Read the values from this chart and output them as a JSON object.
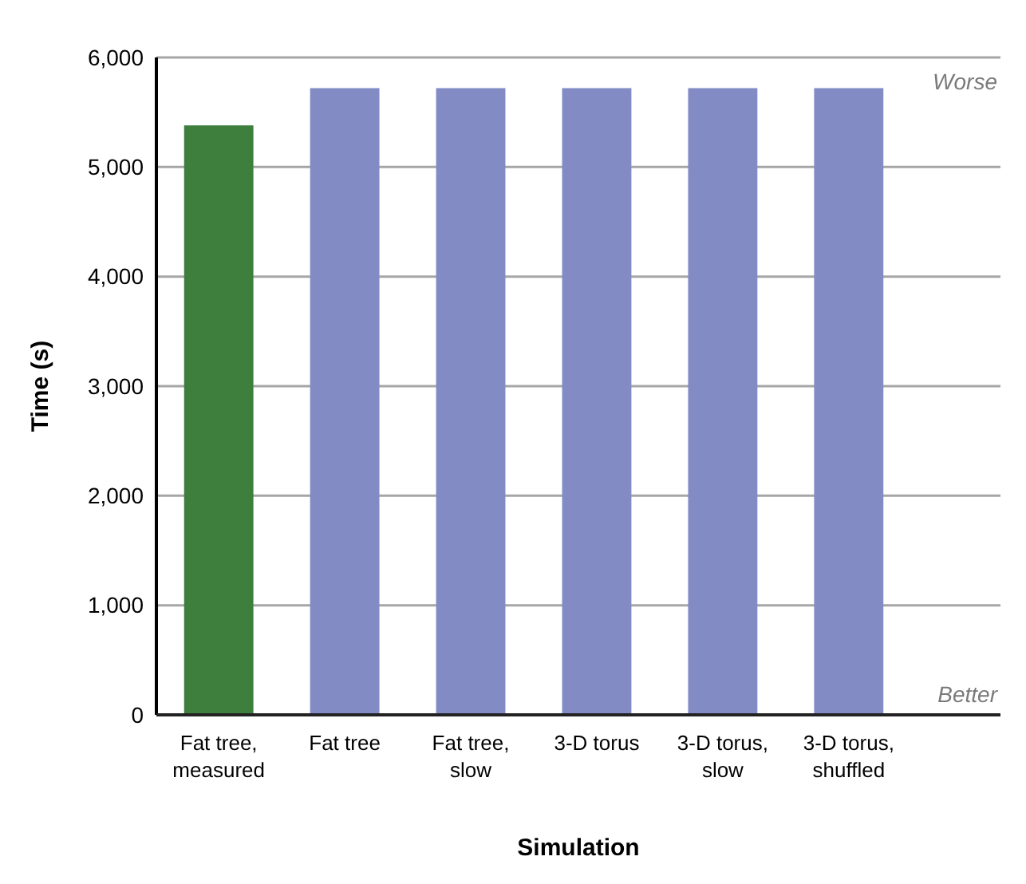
{
  "chart_data": {
    "type": "bar",
    "xlabel": "Simulation",
    "ylabel": "Time (s)",
    "categories": [
      "Fat tree, measured",
      "Fat tree",
      "Fat tree, slow",
      "3-D torus",
      "3-D torus, slow",
      "3-D torus, shuffled"
    ],
    "values": [
      5380,
      5720,
      5720,
      5720,
      5720,
      5720
    ],
    "colors": [
      "#3e7f3e",
      "#828bc4",
      "#828bc4",
      "#828bc4",
      "#828bc4",
      "#828bc4"
    ],
    "ylim": [
      0,
      6000
    ],
    "yticks": [
      {
        "value": 0,
        "label": "0"
      },
      {
        "value": 1000,
        "label": "1,000"
      },
      {
        "value": 2000,
        "label": "2,000"
      },
      {
        "value": 3000,
        "label": "3,000"
      },
      {
        "value": 4000,
        "label": "4,000"
      },
      {
        "value": 5000,
        "label": "5,000"
      },
      {
        "value": 6000,
        "label": "6,000"
      }
    ],
    "grid": "y",
    "annotations": [
      "Worse",
      "Better"
    ]
  }
}
